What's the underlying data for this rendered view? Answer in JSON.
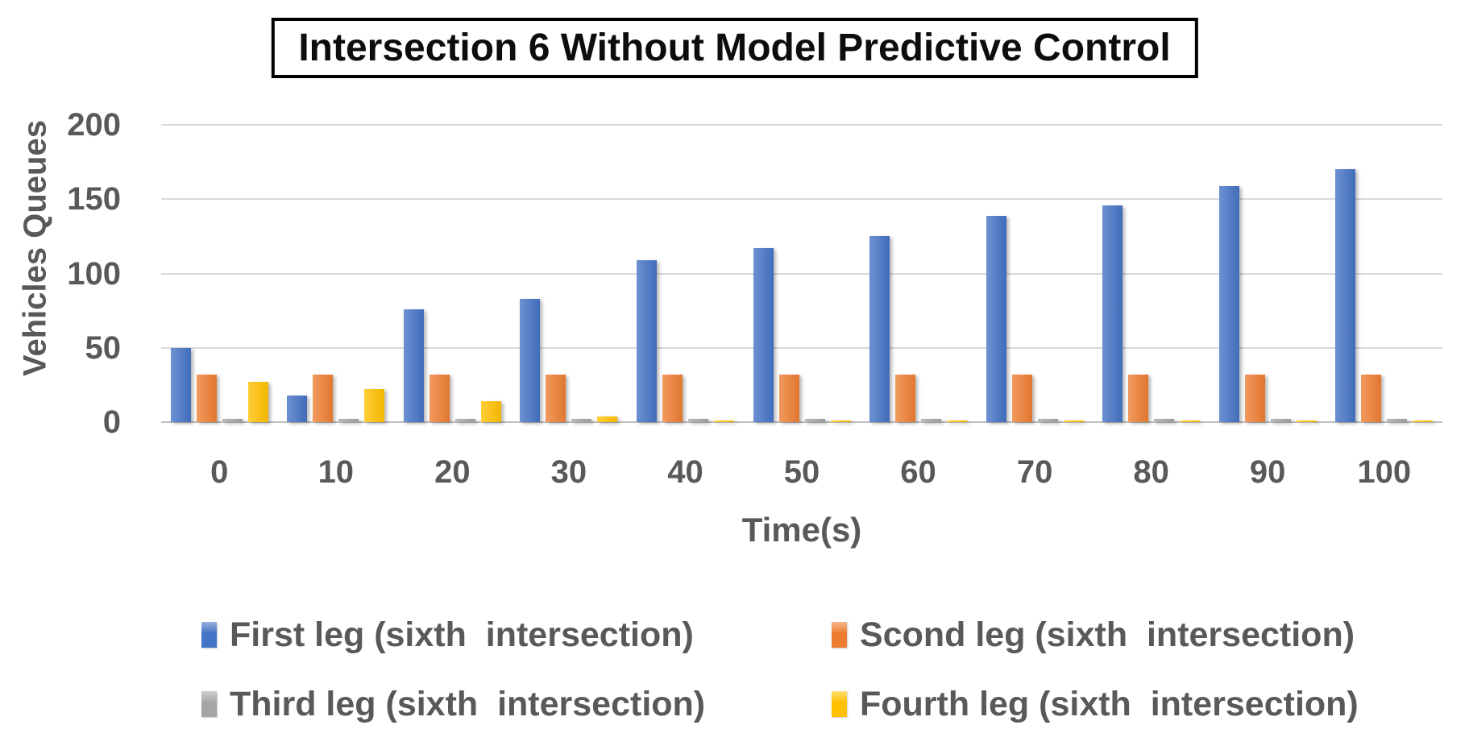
{
  "chart_data": {
    "type": "bar",
    "title": "Intersection 6 Without Model Predictive Control",
    "xlabel": "Time(s)",
    "ylabel": "Vehicles Queues",
    "categories": [
      "0",
      "10",
      "20",
      "30",
      "40",
      "50",
      "60",
      "70",
      "80",
      "90",
      "100"
    ],
    "y_ticks": [
      0,
      50,
      100,
      150,
      200
    ],
    "ylim": [
      0,
      200
    ],
    "grid": true,
    "legend_position": "bottom",
    "series": [
      {
        "name": "First leg (sixth  intersection)",
        "color": "#4472C4",
        "values": [
          50,
          18,
          76,
          83,
          109,
          117,
          125,
          139,
          146,
          159,
          170
        ]
      },
      {
        "name": "Scond leg (sixth  intersection)",
        "color": "#ED7D31",
        "values": [
          32,
          32,
          32,
          32,
          32,
          32,
          32,
          32,
          32,
          32,
          32
        ]
      },
      {
        "name": "Third leg (sixth  intersection)",
        "color": "#A5A5A5",
        "values": [
          2,
          2,
          2,
          2,
          2,
          2,
          2,
          2,
          2,
          2,
          2
        ]
      },
      {
        "name": "Fourth leg (sixth  intersection)",
        "color": "#FFC000",
        "values": [
          27,
          22,
          14,
          4,
          1,
          1,
          1,
          1,
          1,
          1,
          1
        ]
      }
    ]
  }
}
